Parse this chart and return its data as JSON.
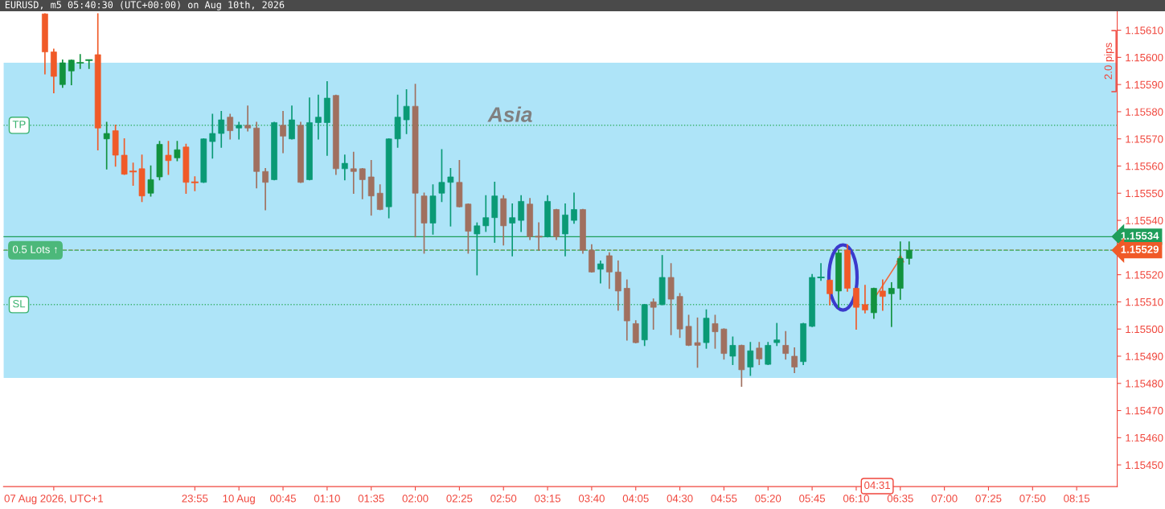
{
  "chart_data": {
    "type": "candlestick",
    "title": "EURUSD, m5 05:40:30 (UTC+00:00) on Aug 10th, 2026",
    "categories": [
      null,
      null,
      null,
      null,
      null,
      "07 Aug 2026, UTC+1",
      null,
      null,
      null,
      null,
      null,
      null,
      null,
      null,
      null,
      null,
      null,
      null,
      null,
      null,
      null,
      "23:55",
      null,
      null,
      null,
      null,
      "10 Aug",
      null,
      null,
      null,
      null,
      "00:45",
      null,
      null,
      null,
      null,
      "01:10",
      null,
      null,
      null,
      null,
      "01:35",
      null,
      null,
      null,
      null,
      "02:00",
      null,
      null,
      null,
      null,
      "02:25",
      null,
      null,
      null,
      null,
      "02:50",
      null,
      null,
      null,
      null,
      "03:15",
      null,
      null,
      null,
      null,
      "03:40",
      null,
      null,
      null,
      null,
      "04:05",
      null,
      null,
      null,
      null,
      "04:30",
      null,
      null,
      null,
      null,
      "04:55",
      null,
      null,
      null,
      null,
      "05:20",
      null,
      null,
      null,
      null,
      "05:45",
      null,
      null,
      null,
      null,
      "06:10",
      null,
      null,
      null,
      null,
      "06:35",
      null,
      null,
      null,
      null,
      "07:00",
      null,
      null,
      null,
      null,
      "07:25",
      null,
      null,
      null,
      null,
      "07:50",
      null,
      null,
      null,
      null,
      "08:15",
      null,
      null,
      null,
      null
    ],
    "ohlc": [
      null,
      null,
      null,
      null,
      [
        1.15616,
        1.15616,
        1.15594,
        1.15602
      ],
      [
        1.15602,
        1.15603,
        1.15587,
        1.15593
      ],
      [
        1.1559,
        1.15599,
        1.15589,
        1.15598
      ],
      [
        1.15595,
        1.15599,
        1.1559,
        1.15599
      ],
      [
        1.15598,
        1.15601,
        1.15596,
        1.15598
      ],
      [
        1.15599,
        1.15599,
        1.15596,
        1.15599
      ],
      [
        1.15601,
        1.15616,
        1.15566,
        1.15574
      ],
      [
        1.1557,
        1.15576,
        1.15559,
        1.15572
      ],
      [
        1.15573,
        1.15575,
        1.1556,
        1.15564
      ],
      [
        1.15564,
        1.1557,
        1.15557,
        1.15557
      ],
      [
        1.15558,
        1.15561,
        1.15553,
        1.15558
      ],
      [
        1.15559,
        1.15564,
        1.15547,
        1.15549
      ],
      [
        1.1555,
        1.1556,
        1.15549,
        1.15555
      ],
      [
        1.15556,
        1.15569,
        1.15555,
        1.15568
      ],
      [
        1.15564,
        1.15569,
        1.15557,
        1.15562
      ],
      [
        1.15563,
        1.15569,
        1.15562,
        1.15566
      ],
      [
        1.15567,
        1.15568,
        1.1555,
        1.15554
      ],
      [
        1.15554,
        1.15556,
        1.15551,
        1.15554
      ],
      [
        1.15554,
        1.1557,
        1.15554,
        1.1557
      ],
      [
        1.15569,
        1.15579,
        1.15563,
        1.15572
      ],
      [
        1.15572,
        1.1558,
        1.15567,
        1.15577
      ],
      [
        1.15578,
        1.15579,
        1.1557,
        1.15573
      ],
      [
        1.15574,
        1.15576,
        1.1557,
        1.15575
      ],
      [
        1.15575,
        1.15582,
        1.15573,
        1.15574
      ],
      [
        1.15574,
        1.15576,
        1.15552,
        1.15558
      ],
      [
        1.15558,
        1.15559,
        1.15544,
        1.15554
      ],
      [
        1.15555,
        1.15576,
        1.15555,
        1.15576
      ],
      [
        1.15575,
        1.1558,
        1.15565,
        1.15571
      ],
      [
        1.1557,
        1.15582,
        1.1557,
        1.15577
      ],
      [
        1.15575,
        1.15576,
        1.15554,
        1.15554
      ],
      [
        1.15555,
        1.15585,
        1.15555,
        1.15576
      ],
      [
        1.15576,
        1.15586,
        1.1557,
        1.15578
      ],
      [
        1.15576,
        1.15591,
        1.15564,
        1.15585
      ],
      [
        1.15586,
        1.15586,
        1.15557,
        1.15559
      ],
      [
        1.15559,
        1.15564,
        1.15555,
        1.15561
      ],
      [
        1.15559,
        1.15565,
        1.1555,
        1.15558
      ],
      [
        1.15559,
        1.15559,
        1.15548,
        1.15555
      ],
      [
        1.15556,
        1.15562,
        1.15542,
        1.15549
      ],
      [
        1.1555,
        1.15553,
        1.15544,
        1.15544
      ],
      [
        1.15545,
        1.1557,
        1.15541,
        1.1557
      ],
      [
        1.1557,
        1.15586,
        1.15567,
        1.15578
      ],
      [
        1.15577,
        1.15588,
        1.15572,
        1.15582
      ],
      [
        1.15582,
        1.1559,
        1.15534,
        1.1555
      ],
      [
        1.15549,
        1.1555,
        1.15528,
        1.15539
      ],
      [
        1.15539,
        1.15553,
        1.15535,
        1.15549
      ],
      [
        1.1555,
        1.15566,
        1.15547,
        1.15554
      ],
      [
        1.15554,
        1.15559,
        1.15538,
        1.15556
      ],
      [
        1.15554,
        1.15562,
        1.15545,
        1.15545
      ],
      [
        1.15546,
        1.15546,
        1.15528,
        1.15536
      ],
      [
        1.15535,
        1.15539,
        1.1552,
        1.15538
      ],
      [
        1.15538,
        1.15549,
        1.15536,
        1.15541
      ],
      [
        1.15541,
        1.15554,
        1.15532,
        1.15549
      ],
      [
        1.15548,
        1.15549,
        1.15531,
        1.15538
      ],
      [
        1.15539,
        1.15546,
        1.15527,
        1.15541
      ],
      [
        1.1554,
        1.15549,
        1.15536,
        1.15547
      ],
      [
        1.15546,
        1.15548,
        1.15533,
        1.15534
      ],
      [
        1.15534,
        1.15539,
        1.15529,
        1.15534
      ],
      [
        1.15534,
        1.15549,
        1.15534,
        1.15547
      ],
      [
        1.15544,
        1.15544,
        1.15533,
        1.15534
      ],
      [
        1.15535,
        1.15546,
        1.15527,
        1.15542
      ],
      [
        1.1554,
        1.1555,
        1.15539,
        1.15544
      ],
      [
        1.15544,
        1.15544,
        1.15528,
        1.15529
      ],
      [
        1.15529,
        1.15531,
        1.15521,
        1.15521
      ],
      [
        1.15522,
        1.15525,
        1.15517,
        1.15524
      ],
      [
        1.15527,
        1.15528,
        1.15515,
        1.15521
      ],
      [
        1.15521,
        1.15525,
        1.15507,
        1.15514
      ],
      [
        1.15515,
        1.15518,
        1.15496,
        1.15503
      ],
      [
        1.15502,
        1.15503,
        1.15495,
        1.15495
      ],
      [
        1.15496,
        1.15509,
        1.15494,
        1.15509
      ],
      [
        1.1551,
        1.15511,
        1.155,
        1.15508
      ],
      [
        1.15509,
        1.15527,
        1.15509,
        1.15519
      ],
      [
        1.15519,
        1.15524,
        1.15498,
        1.15511
      ],
      [
        1.15512,
        1.15513,
        1.15497,
        1.155
      ],
      [
        1.15501,
        1.15505,
        1.15494,
        1.15494
      ],
      [
        1.15495,
        1.15504,
        1.15486,
        1.15494
      ],
      [
        1.15495,
        1.15507,
        1.15493,
        1.15504
      ],
      [
        1.15502,
        1.15505,
        1.15493,
        1.15499
      ],
      [
        1.155,
        1.155,
        1.15489,
        1.15491
      ],
      [
        1.1549,
        1.15497,
        1.15487,
        1.15494
      ],
      [
        1.15494,
        1.15494,
        1.15479,
        1.15485
      ],
      [
        1.15486,
        1.15495,
        1.15483,
        1.15492
      ],
      [
        1.15493,
        1.15495,
        1.15487,
        1.15489
      ],
      [
        1.15487,
        1.15495,
        1.15487,
        1.15494
      ],
      [
        1.15495,
        1.15502,
        1.15494,
        1.15496
      ],
      [
        1.15494,
        1.15499,
        1.15489,
        1.15491
      ],
      [
        1.1549,
        1.15493,
        1.15484,
        1.15486
      ],
      [
        1.15488,
        1.15502,
        1.15487,
        1.15502
      ],
      [
        1.15501,
        1.1552,
        1.15501,
        1.15519
      ],
      [
        1.15519,
        1.15524,
        1.15518,
        1.15519
      ],
      [
        1.15518,
        1.15518,
        1.15509,
        1.15513
      ],
      [
        1.15514,
        1.15529,
        1.15508,
        1.15528
      ],
      [
        1.15529,
        1.15531,
        1.15514,
        1.15515
      ],
      [
        1.15515,
        1.15515,
        1.155,
        1.15508
      ],
      [
        1.15509,
        1.15516,
        1.15506,
        1.15507
      ],
      [
        1.15506,
        1.15515,
        1.15504,
        1.15515
      ],
      [
        1.15514,
        1.15518,
        1.15507,
        1.15512
      ],
      [
        1.15513,
        1.15517,
        1.15501,
        1.15515
      ],
      [
        1.15515,
        1.15532,
        1.15511,
        1.15526
      ],
      [
        1.15526,
        1.15532,
        1.15524,
        1.15529
      ],
      null,
      null,
      null,
      null,
      null,
      null,
      null,
      null,
      null,
      null,
      null,
      null,
      null,
      null,
      null,
      null,
      null,
      null,
      null,
      null,
      null,
      null,
      null
    ],
    "colors": [
      null,
      null,
      null,
      null,
      "#f05a28",
      "#f05a28",
      "#12923e",
      "#12923e",
      "#12923e",
      "#12923e",
      "#f05a28",
      "#12923e",
      "#f05a28",
      "#f05a28",
      "#f05a28",
      "#f05a28",
      "#12923e",
      "#12923e",
      "#f05a28",
      "#12923e",
      "#f05a28",
      "#f05a28",
      "#0a9a75",
      "#0a9a75",
      "#0a9a75",
      "#a0705f",
      "#0a9a75",
      "#a0705f",
      "#a0705f",
      "#a0705f",
      "#0a9a75",
      "#a0705f",
      "#0a9a75",
      "#a0705f",
      "#0a9a75",
      "#0a9a75",
      "#0a9a75",
      "#a0705f",
      "#0a9a75",
      "#a0705f",
      "#a0705f",
      "#a0705f",
      "#a0705f",
      "#0a9a75",
      "#0a9a75",
      "#0a9a75",
      "#a0705f",
      "#a0705f",
      "#0a9a75",
      "#0a9a75",
      "#0a9a75",
      "#a0705f",
      "#a0705f",
      "#0a9a75",
      "#0a9a75",
      "#0a9a75",
      "#a0705f",
      "#0a9a75",
      "#0a9a75",
      "#a0705f",
      "#a0705f",
      "#0a9a75",
      "#a0705f",
      "#0a9a75",
      "#0a9a75",
      "#a0705f",
      "#a0705f",
      "#0a9a75",
      "#a0705f",
      "#a0705f",
      "#a0705f",
      "#a0705f",
      "#0a9a75",
      "#a0705f",
      "#0a9a75",
      "#a0705f",
      "#a0705f",
      "#a0705f",
      "#a0705f",
      "#0a9a75",
      "#a0705f",
      "#a0705f",
      "#0a9a75",
      "#a0705f",
      "#0a9a75",
      "#a0705f",
      "#0a9a75",
      "#0a9a75",
      "#a0705f",
      "#a0705f",
      "#0a9a75",
      "#0a9a75",
      "#0a9a75",
      "#f05a28",
      "#12923e",
      "#f05a28",
      "#f05a28",
      "#f05a28",
      "#12923e",
      "#f05a28",
      "#12923e",
      "#12923e",
      "#12923e",
      null,
      null,
      null,
      null,
      null,
      null,
      null,
      null,
      null,
      null,
      null,
      null,
      null,
      null,
      null,
      null,
      null,
      null,
      null,
      null,
      null,
      null,
      null
    ],
    "ylim": [
      1.15442,
      1.15617
    ],
    "yticks": [
      {
        "value": 1.1545,
        "label": "1.15450"
      },
      {
        "value": 1.1546,
        "label": "1.15460"
      },
      {
        "value": 1.1547,
        "label": "1.15470"
      },
      {
        "value": 1.1548,
        "label": "1.15480"
      },
      {
        "value": 1.1549,
        "label": "1.15490"
      },
      {
        "value": 1.155,
        "label": "1.15500"
      },
      {
        "value": 1.1551,
        "label": "1.15510"
      },
      {
        "value": 1.1552,
        "label": "1.15520"
      },
      {
        "value": 1.1553,
        "label": null
      },
      {
        "value": 1.1554,
        "label": "1.15540"
      },
      {
        "value": 1.1555,
        "label": "1.15550"
      },
      {
        "value": 1.1556,
        "label": "1.15560"
      },
      {
        "value": 1.1557,
        "label": "1.15570"
      },
      {
        "value": 1.1558,
        "label": "1.15580"
      },
      {
        "value": 1.1559,
        "label": "1.15590"
      },
      {
        "value": 1.156,
        "label": "1.15600"
      },
      {
        "value": 1.1561,
        "label": "1.15610"
      }
    ],
    "ref_lines": [
      {
        "axis": "y",
        "value": 1.15575,
        "label": "TP",
        "color": "#3cb371",
        "line_style": "dotted"
      },
      {
        "axis": "y",
        "value": 1.15509,
        "label": "SL",
        "color": "#3cb371",
        "line_style": "dotted"
      },
      {
        "axis": "y",
        "value": 1.15534,
        "label": "1.15534",
        "color": "#1e9e5a",
        "line_style": "solid"
      },
      {
        "axis": "y",
        "value": 1.15529,
        "label": "1.15529",
        "color": "#f05a28",
        "line_style": "dashed"
      },
      {
        "axis": "y",
        "value": 1.15529,
        "label": "0.5 Lots ↑",
        "color": "#4cb87a",
        "line_style": "dashed"
      }
    ],
    "bands": [
      {
        "axis": "y",
        "from": 1.15482,
        "to": 1.15598,
        "label": "Asia",
        "color": "#aee4f8"
      }
    ],
    "annotations": [
      "2.0 pips",
      "04:31"
    ],
    "grid": false
  }
}
